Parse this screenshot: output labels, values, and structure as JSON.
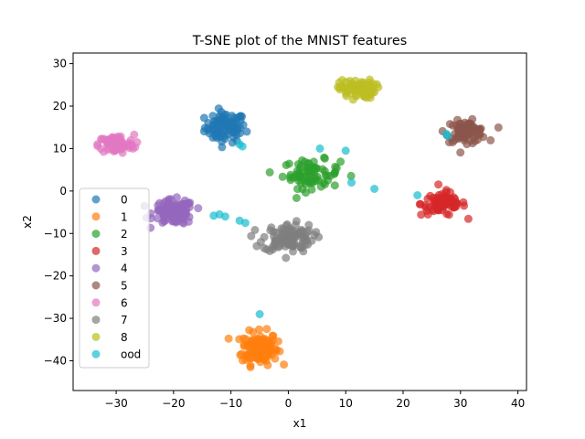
{
  "chart_data": {
    "type": "scatter",
    "title": "T-SNE plot of the MNIST features",
    "xlabel": "x1",
    "ylabel": "x2",
    "xlim": [
      -37.5,
      41.5
    ],
    "ylim": [
      -47,
      32.5
    ],
    "xticks": [
      -30,
      -20,
      -10,
      0,
      10,
      20,
      30,
      40
    ],
    "yticks": [
      -40,
      -30,
      -20,
      -10,
      0,
      10,
      20,
      30
    ],
    "grid": false,
    "legend_position": "lower-left",
    "series": [
      {
        "name": "0",
        "color": "#1f77b4",
        "center": [
          -11,
          15
        ],
        "spread": [
          3.2,
          3.2
        ],
        "count": 90
      },
      {
        "name": "1",
        "color": "#ff7f0e",
        "center": [
          -5,
          -37
        ],
        "spread": [
          2.8,
          3.5
        ],
        "count": 130
      },
      {
        "name": "2",
        "color": "#2ca02c",
        "center": [
          4,
          4
        ],
        "spread": [
          4.5,
          3.0
        ],
        "count": 80
      },
      {
        "name": "3",
        "color": "#d62728",
        "center": [
          27,
          -3
        ],
        "spread": [
          3.5,
          2.5
        ],
        "count": 75
      },
      {
        "name": "4",
        "color": "#9467bd",
        "center": [
          -20,
          -5
        ],
        "spread": [
          3.2,
          2.6
        ],
        "count": 110
      },
      {
        "name": "5",
        "color": "#8c564b",
        "center": [
          31,
          14
        ],
        "spread": [
          3.2,
          2.2
        ],
        "count": 80
      },
      {
        "name": "6",
        "color": "#e377c2",
        "center": [
          -30,
          11
        ],
        "spread": [
          2.8,
          2.0
        ],
        "count": 90
      },
      {
        "name": "7",
        "color": "#7f7f7f",
        "center": [
          0,
          -11
        ],
        "spread": [
          4.0,
          3.0
        ],
        "count": 110
      },
      {
        "name": "8",
        "color": "#bcbd22",
        "center": [
          12,
          24
        ],
        "spread": [
          2.8,
          2.0
        ],
        "count": 80
      },
      {
        "name": "ood",
        "color": "#17becf",
        "points": [
          [
            -8.5,
            -7
          ],
          [
            -7.5,
            -7.5
          ],
          [
            -12,
            -5.5
          ],
          [
            -13,
            -5.8
          ],
          [
            -11,
            -6
          ],
          [
            -8,
            10.5
          ],
          [
            -8.5,
            11
          ],
          [
            10,
            9.5
          ],
          [
            5.5,
            10
          ],
          [
            11,
            2
          ],
          [
            15,
            0.5
          ],
          [
            22.5,
            -1
          ],
          [
            27.5,
            13.5
          ],
          [
            27.8,
            13
          ],
          [
            -5,
            -29
          ]
        ]
      }
    ]
  }
}
